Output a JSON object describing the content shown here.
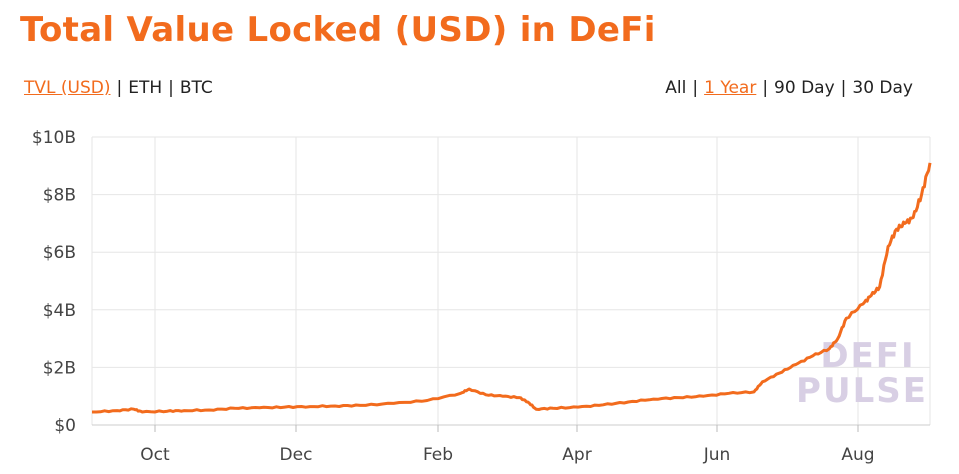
{
  "title": "Total Value Locked (USD) in DeFi",
  "toolbar": {
    "units": [
      {
        "label": "TVL (USD)",
        "active": true
      },
      {
        "label": "ETH",
        "active": false
      },
      {
        "label": "BTC",
        "active": false
      }
    ],
    "ranges": [
      {
        "label": "All",
        "active": false
      },
      {
        "label": "1 Year",
        "active": true
      },
      {
        "label": "90 Day",
        "active": false
      },
      {
        "label": "30 Day",
        "active": false
      }
    ]
  },
  "watermark": {
    "line1": "DEFI",
    "line2": "PULSE"
  },
  "colors": {
    "accent": "#f26b1d",
    "grid": "#e6e6e6",
    "watermark": "#d8cfe4"
  },
  "chart_data": {
    "type": "line",
    "title": "Total Value Locked (USD) in DeFi",
    "xlabel": "",
    "ylabel": "",
    "x_ticks": [
      "Oct",
      "Dec",
      "Feb",
      "Apr",
      "Jun",
      "Aug"
    ],
    "y_ticks": [
      "$0",
      "$2B",
      "$4B",
      "$6B",
      "$8B",
      "$10B"
    ],
    "ylim": [
      0,
      10
    ],
    "y_unit": "billion USD",
    "grid": true,
    "legend": "none",
    "series": [
      {
        "values": [
          [
            0.0,
            0.45
          ],
          [
            0.03,
            0.5
          ],
          [
            0.05,
            0.55
          ],
          [
            0.06,
            0.45
          ],
          [
            0.09,
            0.48
          ],
          [
            0.11,
            0.5
          ],
          [
            0.14,
            0.52
          ],
          [
            0.17,
            0.58
          ],
          [
            0.2,
            0.6
          ],
          [
            0.23,
            0.62
          ],
          [
            0.26,
            0.64
          ],
          [
            0.29,
            0.66
          ],
          [
            0.32,
            0.68
          ],
          [
            0.36,
            0.75
          ],
          [
            0.4,
            0.85
          ],
          [
            0.44,
            1.1
          ],
          [
            0.45,
            1.25
          ],
          [
            0.47,
            1.05
          ],
          [
            0.49,
            1.0
          ],
          [
            0.51,
            0.95
          ],
          [
            0.52,
            0.8
          ],
          [
            0.53,
            0.55
          ],
          [
            0.55,
            0.58
          ],
          [
            0.58,
            0.62
          ],
          [
            0.61,
            0.7
          ],
          [
            0.64,
            0.8
          ],
          [
            0.67,
            0.9
          ],
          [
            0.7,
            0.95
          ],
          [
            0.73,
            1.0
          ],
          [
            0.76,
            1.1
          ],
          [
            0.79,
            1.15
          ],
          [
            0.8,
            1.5
          ],
          [
            0.82,
            1.8
          ],
          [
            0.84,
            2.1
          ],
          [
            0.86,
            2.4
          ],
          [
            0.88,
            2.65
          ],
          [
            0.89,
            3.0
          ],
          [
            0.9,
            3.7
          ],
          [
            0.92,
            4.2
          ],
          [
            0.93,
            4.5
          ],
          [
            0.94,
            4.8
          ],
          [
            0.95,
            6.2
          ],
          [
            0.96,
            6.8
          ],
          [
            0.97,
            7.0
          ],
          [
            0.98,
            7.2
          ],
          [
            0.99,
            8.0
          ],
          [
            1.0,
            9.1
          ]
        ]
      }
    ]
  }
}
